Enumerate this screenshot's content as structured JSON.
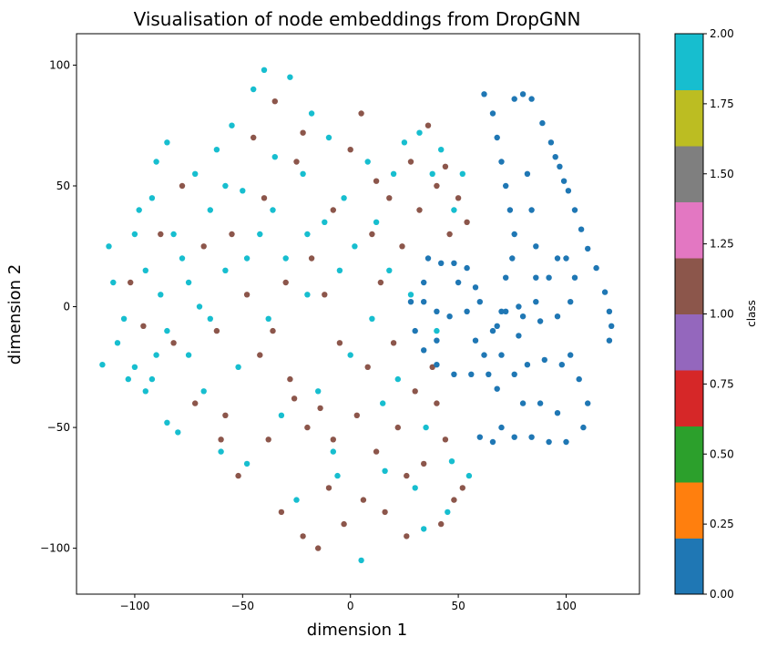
{
  "chart_data": {
    "type": "scatter",
    "title": "Visualisation of node embeddings from DropGNN",
    "xlabel": "dimension 1",
    "ylabel": "dimension 2",
    "xlim": [
      -127,
      134
    ],
    "ylim": [
      -119,
      113
    ],
    "xticks": [
      -100,
      -50,
      0,
      50,
      100
    ],
    "yticks": [
      -100,
      -50,
      0,
      50,
      100
    ],
    "xtick_labels": [
      "−100",
      "−50",
      "0",
      "50",
      "100"
    ],
    "ytick_labels": [
      "−100",
      "−50",
      "0",
      "50",
      "100"
    ],
    "grid": false,
    "legend": "none",
    "colorbar": {
      "label": "class",
      "range": [
        0,
        2
      ],
      "colormap": "tab10",
      "ticks": [
        0,
        0.25,
        0.5,
        0.75,
        1.0,
        1.25,
        1.5,
        1.75,
        2.0
      ],
      "tick_labels": [
        "0.00",
        "0.25",
        "0.50",
        "0.75",
        "1.00",
        "1.25",
        "1.50",
        "1.75",
        "2.00"
      ],
      "bands": [
        "#1f77b4",
        "#ff7f0e",
        "#2ca02c",
        "#d62728",
        "#9467bd",
        "#8c564b",
        "#e377c2",
        "#7f7f7f",
        "#bcbd22",
        "#17becf"
      ]
    },
    "class_colors": {
      "0": "#1f77b4",
      "1": "#8c564b",
      "2": "#17becf"
    },
    "series": [
      {
        "class": 2,
        "points": [
          [
            -115,
            -24
          ],
          [
            -112,
            25
          ],
          [
            -110,
            10
          ],
          [
            -105,
            -5
          ],
          [
            -103,
            -30
          ],
          [
            -100,
            30
          ],
          [
            -98,
            40
          ],
          [
            -95,
            -35
          ],
          [
            -95,
            15
          ],
          [
            -92,
            45
          ],
          [
            -90,
            60
          ],
          [
            -90,
            -20
          ],
          [
            -88,
            5
          ],
          [
            -85,
            68
          ],
          [
            -85,
            -48
          ],
          [
            -82,
            30
          ],
          [
            -80,
            -52
          ],
          [
            -78,
            20
          ],
          [
            -75,
            -20
          ],
          [
            -72,
            55
          ],
          [
            -70,
            0
          ],
          [
            -68,
            -35
          ],
          [
            -65,
            40
          ],
          [
            -62,
            65
          ],
          [
            -60,
            -60
          ],
          [
            -58,
            15
          ],
          [
            -55,
            75
          ],
          [
            -52,
            -25
          ],
          [
            -50,
            48
          ],
          [
            -48,
            -65
          ],
          [
            -45,
            90
          ],
          [
            -42,
            30
          ],
          [
            -40,
            98
          ],
          [
            -38,
            -5
          ],
          [
            -35,
            62
          ],
          [
            -32,
            -45
          ],
          [
            -30,
            20
          ],
          [
            -28,
            95
          ],
          [
            -25,
            -80
          ],
          [
            -22,
            55
          ],
          [
            -20,
            5
          ],
          [
            -18,
            80
          ],
          [
            -15,
            -35
          ],
          [
            -12,
            35
          ],
          [
            -10,
            70
          ],
          [
            -8,
            -60
          ],
          [
            -5,
            15
          ],
          [
            -3,
            45
          ],
          [
            0,
            -20
          ],
          [
            2,
            25
          ],
          [
            5,
            -105
          ],
          [
            8,
            60
          ],
          [
            10,
            -5
          ],
          [
            12,
            35
          ],
          [
            15,
            -40
          ],
          [
            18,
            15
          ],
          [
            20,
            55
          ],
          [
            22,
            -30
          ],
          [
            25,
            68
          ],
          [
            28,
            5
          ],
          [
            30,
            -75
          ],
          [
            32,
            72
          ],
          [
            35,
            -50
          ],
          [
            38,
            55
          ],
          [
            40,
            -10
          ],
          [
            42,
            65
          ],
          [
            45,
            -85
          ],
          [
            48,
            40
          ],
          [
            52,
            55
          ],
          [
            55,
            -70
          ],
          [
            -108,
            -15
          ],
          [
            -100,
            -25
          ],
          [
            -92,
            -30
          ],
          [
            -85,
            -10
          ],
          [
            -75,
            10
          ],
          [
            -65,
            -5
          ],
          [
            -58,
            50
          ],
          [
            -48,
            20
          ],
          [
            -36,
            40
          ],
          [
            -20,
            30
          ],
          [
            -6,
            -70
          ],
          [
            16,
            -68
          ],
          [
            34,
            -92
          ],
          [
            47,
            -64
          ]
        ]
      },
      {
        "class": 1,
        "points": [
          [
            -102,
            10
          ],
          [
            -96,
            -8
          ],
          [
            -88,
            30
          ],
          [
            -82,
            -15
          ],
          [
            -78,
            50
          ],
          [
            -72,
            -40
          ],
          [
            -68,
            25
          ],
          [
            -62,
            -10
          ],
          [
            -58,
            -45
          ],
          [
            -55,
            30
          ],
          [
            -52,
            -70
          ],
          [
            -48,
            5
          ],
          [
            -45,
            70
          ],
          [
            -42,
            -20
          ],
          [
            -40,
            45
          ],
          [
            -38,
            -55
          ],
          [
            -35,
            85
          ],
          [
            -32,
            -85
          ],
          [
            -30,
            10
          ],
          [
            -28,
            -30
          ],
          [
            -25,
            60
          ],
          [
            -22,
            -95
          ],
          [
            -20,
            -50
          ],
          [
            -18,
            20
          ],
          [
            -15,
            -100
          ],
          [
            -12,
            5
          ],
          [
            -10,
            -75
          ],
          [
            -8,
            40
          ],
          [
            -5,
            -15
          ],
          [
            -3,
            -90
          ],
          [
            0,
            65
          ],
          [
            3,
            -45
          ],
          [
            5,
            80
          ],
          [
            8,
            -25
          ],
          [
            10,
            30
          ],
          [
            12,
            -60
          ],
          [
            14,
            10
          ],
          [
            16,
            -85
          ],
          [
            18,
            45
          ],
          [
            20,
            -15
          ],
          [
            22,
            -50
          ],
          [
            24,
            25
          ],
          [
            26,
            -95
          ],
          [
            28,
            60
          ],
          [
            30,
            -35
          ],
          [
            32,
            40
          ],
          [
            34,
            -65
          ],
          [
            36,
            75
          ],
          [
            38,
            -25
          ],
          [
            40,
            50
          ],
          [
            42,
            -90
          ],
          [
            44,
            -55
          ],
          [
            46,
            30
          ],
          [
            48,
            -80
          ],
          [
            50,
            45
          ],
          [
            52,
            -75
          ],
          [
            54,
            35
          ],
          [
            -26,
            -38
          ],
          [
            -8,
            -55
          ],
          [
            6,
            -80
          ],
          [
            -14,
            -42
          ],
          [
            26,
            -70
          ],
          [
            40,
            -40
          ],
          [
            44,
            58
          ],
          [
            -60,
            -55
          ],
          [
            -36,
            -10
          ],
          [
            -22,
            72
          ],
          [
            12,
            52
          ]
        ]
      },
      {
        "class": 0,
        "points": [
          [
            62,
            88
          ],
          [
            66,
            80
          ],
          [
            68,
            70
          ],
          [
            70,
            60
          ],
          [
            72,
            50
          ],
          [
            74,
            40
          ],
          [
            76,
            30
          ],
          [
            75,
            20
          ],
          [
            72,
            12
          ],
          [
            76,
            86
          ],
          [
            84,
            86
          ],
          [
            80,
            88
          ],
          [
            82,
            55
          ],
          [
            84,
            40
          ],
          [
            86,
            25
          ],
          [
            86,
            12
          ],
          [
            89,
            76
          ],
          [
            93,
            68
          ],
          [
            97,
            58
          ],
          [
            101,
            48
          ],
          [
            104,
            40
          ],
          [
            107,
            32
          ],
          [
            110,
            24
          ],
          [
            114,
            16
          ],
          [
            118,
            6
          ],
          [
            120,
            -2
          ],
          [
            121,
            -8
          ],
          [
            120,
            -14
          ],
          [
            95,
            62
          ],
          [
            99,
            52
          ],
          [
            36,
            20
          ],
          [
            42,
            18
          ],
          [
            48,
            18
          ],
          [
            54,
            16
          ],
          [
            58,
            8
          ],
          [
            54,
            -2
          ],
          [
            46,
            -4
          ],
          [
            40,
            -2
          ],
          [
            34,
            2
          ],
          [
            34,
            10
          ],
          [
            28,
            2
          ],
          [
            30,
            -10
          ],
          [
            34,
            -18
          ],
          [
            40,
            -24
          ],
          [
            48,
            -28
          ],
          [
            56,
            -28
          ],
          [
            62,
            -20
          ],
          [
            66,
            -10
          ],
          [
            70,
            -2
          ],
          [
            78,
            0
          ],
          [
            86,
            2
          ],
          [
            92,
            12
          ],
          [
            96,
            20
          ],
          [
            100,
            20
          ],
          [
            104,
            12
          ],
          [
            102,
            2
          ],
          [
            96,
            -4
          ],
          [
            88,
            -6
          ],
          [
            78,
            -12
          ],
          [
            70,
            -20
          ],
          [
            64,
            -28
          ],
          [
            68,
            -34
          ],
          [
            76,
            -28
          ],
          [
            82,
            -24
          ],
          [
            90,
            -22
          ],
          [
            98,
            -24
          ],
          [
            106,
            -30
          ],
          [
            110,
            -40
          ],
          [
            108,
            -50
          ],
          [
            100,
            -56
          ],
          [
            92,
            -56
          ],
          [
            84,
            -54
          ],
          [
            76,
            -54
          ],
          [
            70,
            -50
          ],
          [
            80,
            -40
          ],
          [
            88,
            -40
          ],
          [
            96,
            -44
          ],
          [
            68,
            -8
          ],
          [
            72,
            -2
          ],
          [
            80,
            -4
          ],
          [
            50,
            10
          ],
          [
            58,
            -14
          ],
          [
            40,
            -14
          ],
          [
            60,
            2
          ],
          [
            66,
            -56
          ],
          [
            60,
            -54
          ],
          [
            102,
            -20
          ]
        ]
      }
    ]
  }
}
